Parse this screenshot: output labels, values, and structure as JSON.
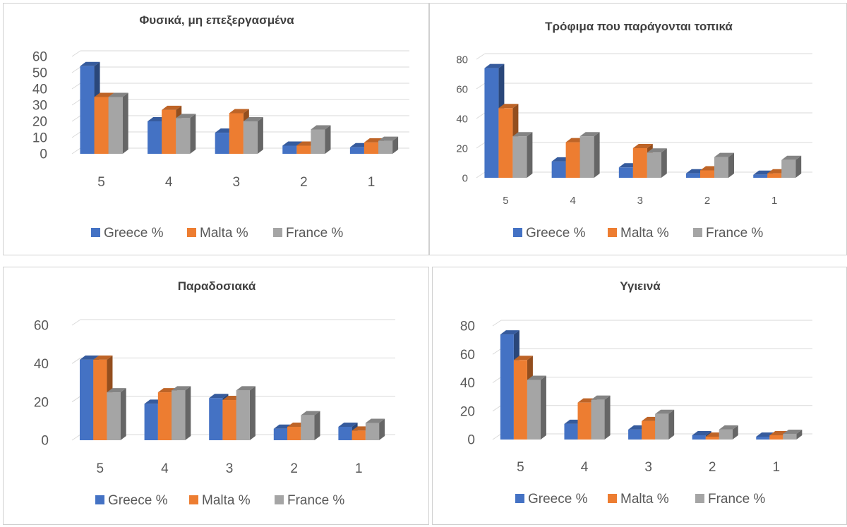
{
  "colors": {
    "greece": "#4472C4",
    "malta": "#ED7D31",
    "france": "#A5A5A5"
  },
  "chart_data": [
    {
      "type": "bar",
      "title": "Φυσικά, μη επεξεργασμένα",
      "categories": [
        "5",
        "4",
        "3",
        "2",
        "1"
      ],
      "series": [
        {
          "name": "Greece %",
          "values": [
            54,
            20,
            13,
            5,
            4
          ]
        },
        {
          "name": "Malta %",
          "values": [
            35,
            27,
            25,
            5,
            7
          ]
        },
        {
          "name": "France %",
          "values": [
            35,
            22,
            20,
            15,
            8
          ]
        }
      ],
      "ylim": [
        0,
        60
      ],
      "yticks": [
        "0",
        "10",
        "20",
        "30",
        "40",
        "50",
        "60"
      ],
      "grid": true,
      "legend": "bottom"
    },
    {
      "type": "bar",
      "title": "Τρόφιμα που παράγονται τοπικά",
      "categories": [
        "5",
        "4",
        "3",
        "2",
        "1"
      ],
      "series": [
        {
          "name": "Greece %",
          "values": [
            74,
            11,
            7,
            3,
            2
          ]
        },
        {
          "name": "Malta %",
          "values": [
            47,
            24,
            20,
            5,
            3
          ]
        },
        {
          "name": "France %",
          "values": [
            28,
            28,
            17,
            14,
            12
          ]
        }
      ],
      "ylim": [
        0,
        80
      ],
      "yticks": [
        "0",
        "20",
        "40",
        "60",
        "80"
      ],
      "grid": true,
      "legend": "bottom"
    },
    {
      "type": "bar",
      "title": "Παραδοσιακά",
      "categories": [
        "5",
        "4",
        "3",
        "2",
        "1"
      ],
      "series": [
        {
          "name": "Greece %",
          "values": [
            42,
            19,
            22,
            6,
            7
          ]
        },
        {
          "name": "Malta %",
          "values": [
            42,
            25,
            21,
            7,
            5
          ]
        },
        {
          "name": "France %",
          "values": [
            25,
            26,
            26,
            13,
            9
          ]
        }
      ],
      "ylim": [
        0,
        60
      ],
      "yticks": [
        "0",
        "20",
        "40",
        "60"
      ],
      "grid": true,
      "legend": "bottom"
    },
    {
      "type": "bar",
      "title": "Υγιεινά",
      "categories": [
        "5",
        "4",
        "3",
        "2",
        "1"
      ],
      "series": [
        {
          "name": "Greece %",
          "values": [
            74,
            11,
            7,
            3,
            2
          ]
        },
        {
          "name": "Malta %",
          "values": [
            56,
            26,
            13,
            2,
            3
          ]
        },
        {
          "name": "France %",
          "values": [
            42,
            28,
            18,
            7,
            4
          ]
        }
      ],
      "ylim": [
        0,
        80
      ],
      "yticks": [
        "0",
        "20",
        "40",
        "60",
        "80"
      ],
      "grid": true,
      "legend": "bottom"
    }
  ]
}
